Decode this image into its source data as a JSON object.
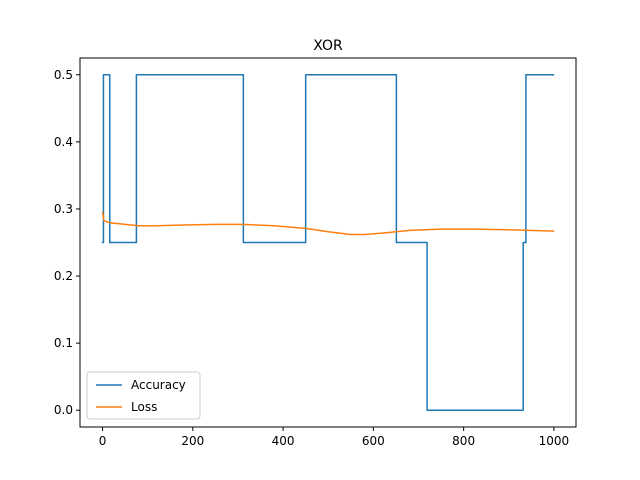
{
  "chart_data": {
    "type": "line",
    "title": "XOR",
    "xlabel": "",
    "ylabel": "",
    "xlim": [
      -49.95,
      1048.95
    ],
    "ylim": [
      -0.025,
      0.525
    ],
    "xticks": [
      0,
      200,
      400,
      600,
      800,
      1000
    ],
    "xtick_labels": [
      "0",
      "200",
      "400",
      "600",
      "800",
      "1000"
    ],
    "yticks": [
      0.0,
      0.1,
      0.2,
      0.3,
      0.4,
      0.5
    ],
    "ytick_labels": [
      "0.0",
      "0.1",
      "0.2",
      "0.3",
      "0.4",
      "0.5"
    ],
    "grid": false,
    "legend_position": "lower-left",
    "series": [
      {
        "name": "Accuracy",
        "color": "#1f77b4",
        "step": true,
        "x": [
          0,
          2,
          2,
          16,
          16,
          75,
          75,
          312,
          312,
          450,
          450,
          651,
          651,
          719,
          719,
          932,
          932,
          938,
          938,
          999
        ],
        "y": [
          0.25,
          0.25,
          0.5,
          0.5,
          0.25,
          0.25,
          0.5,
          0.5,
          0.25,
          0.25,
          0.5,
          0.5,
          0.25,
          0.25,
          0.0,
          0.0,
          0.25,
          0.25,
          0.5,
          0.5
        ]
      },
      {
        "name": "Loss",
        "color": "#ff7f0e",
        "step": false,
        "x": [
          0,
          3,
          8,
          20,
          50,
          80,
          120,
          180,
          250,
          310,
          380,
          450,
          500,
          550,
          580,
          620,
          680,
          750,
          820,
          900,
          999
        ],
        "y": [
          0.295,
          0.283,
          0.281,
          0.279,
          0.277,
          0.275,
          0.275,
          0.276,
          0.277,
          0.277,
          0.275,
          0.271,
          0.266,
          0.262,
          0.262,
          0.264,
          0.268,
          0.27,
          0.27,
          0.269,
          0.267
        ]
      }
    ]
  }
}
